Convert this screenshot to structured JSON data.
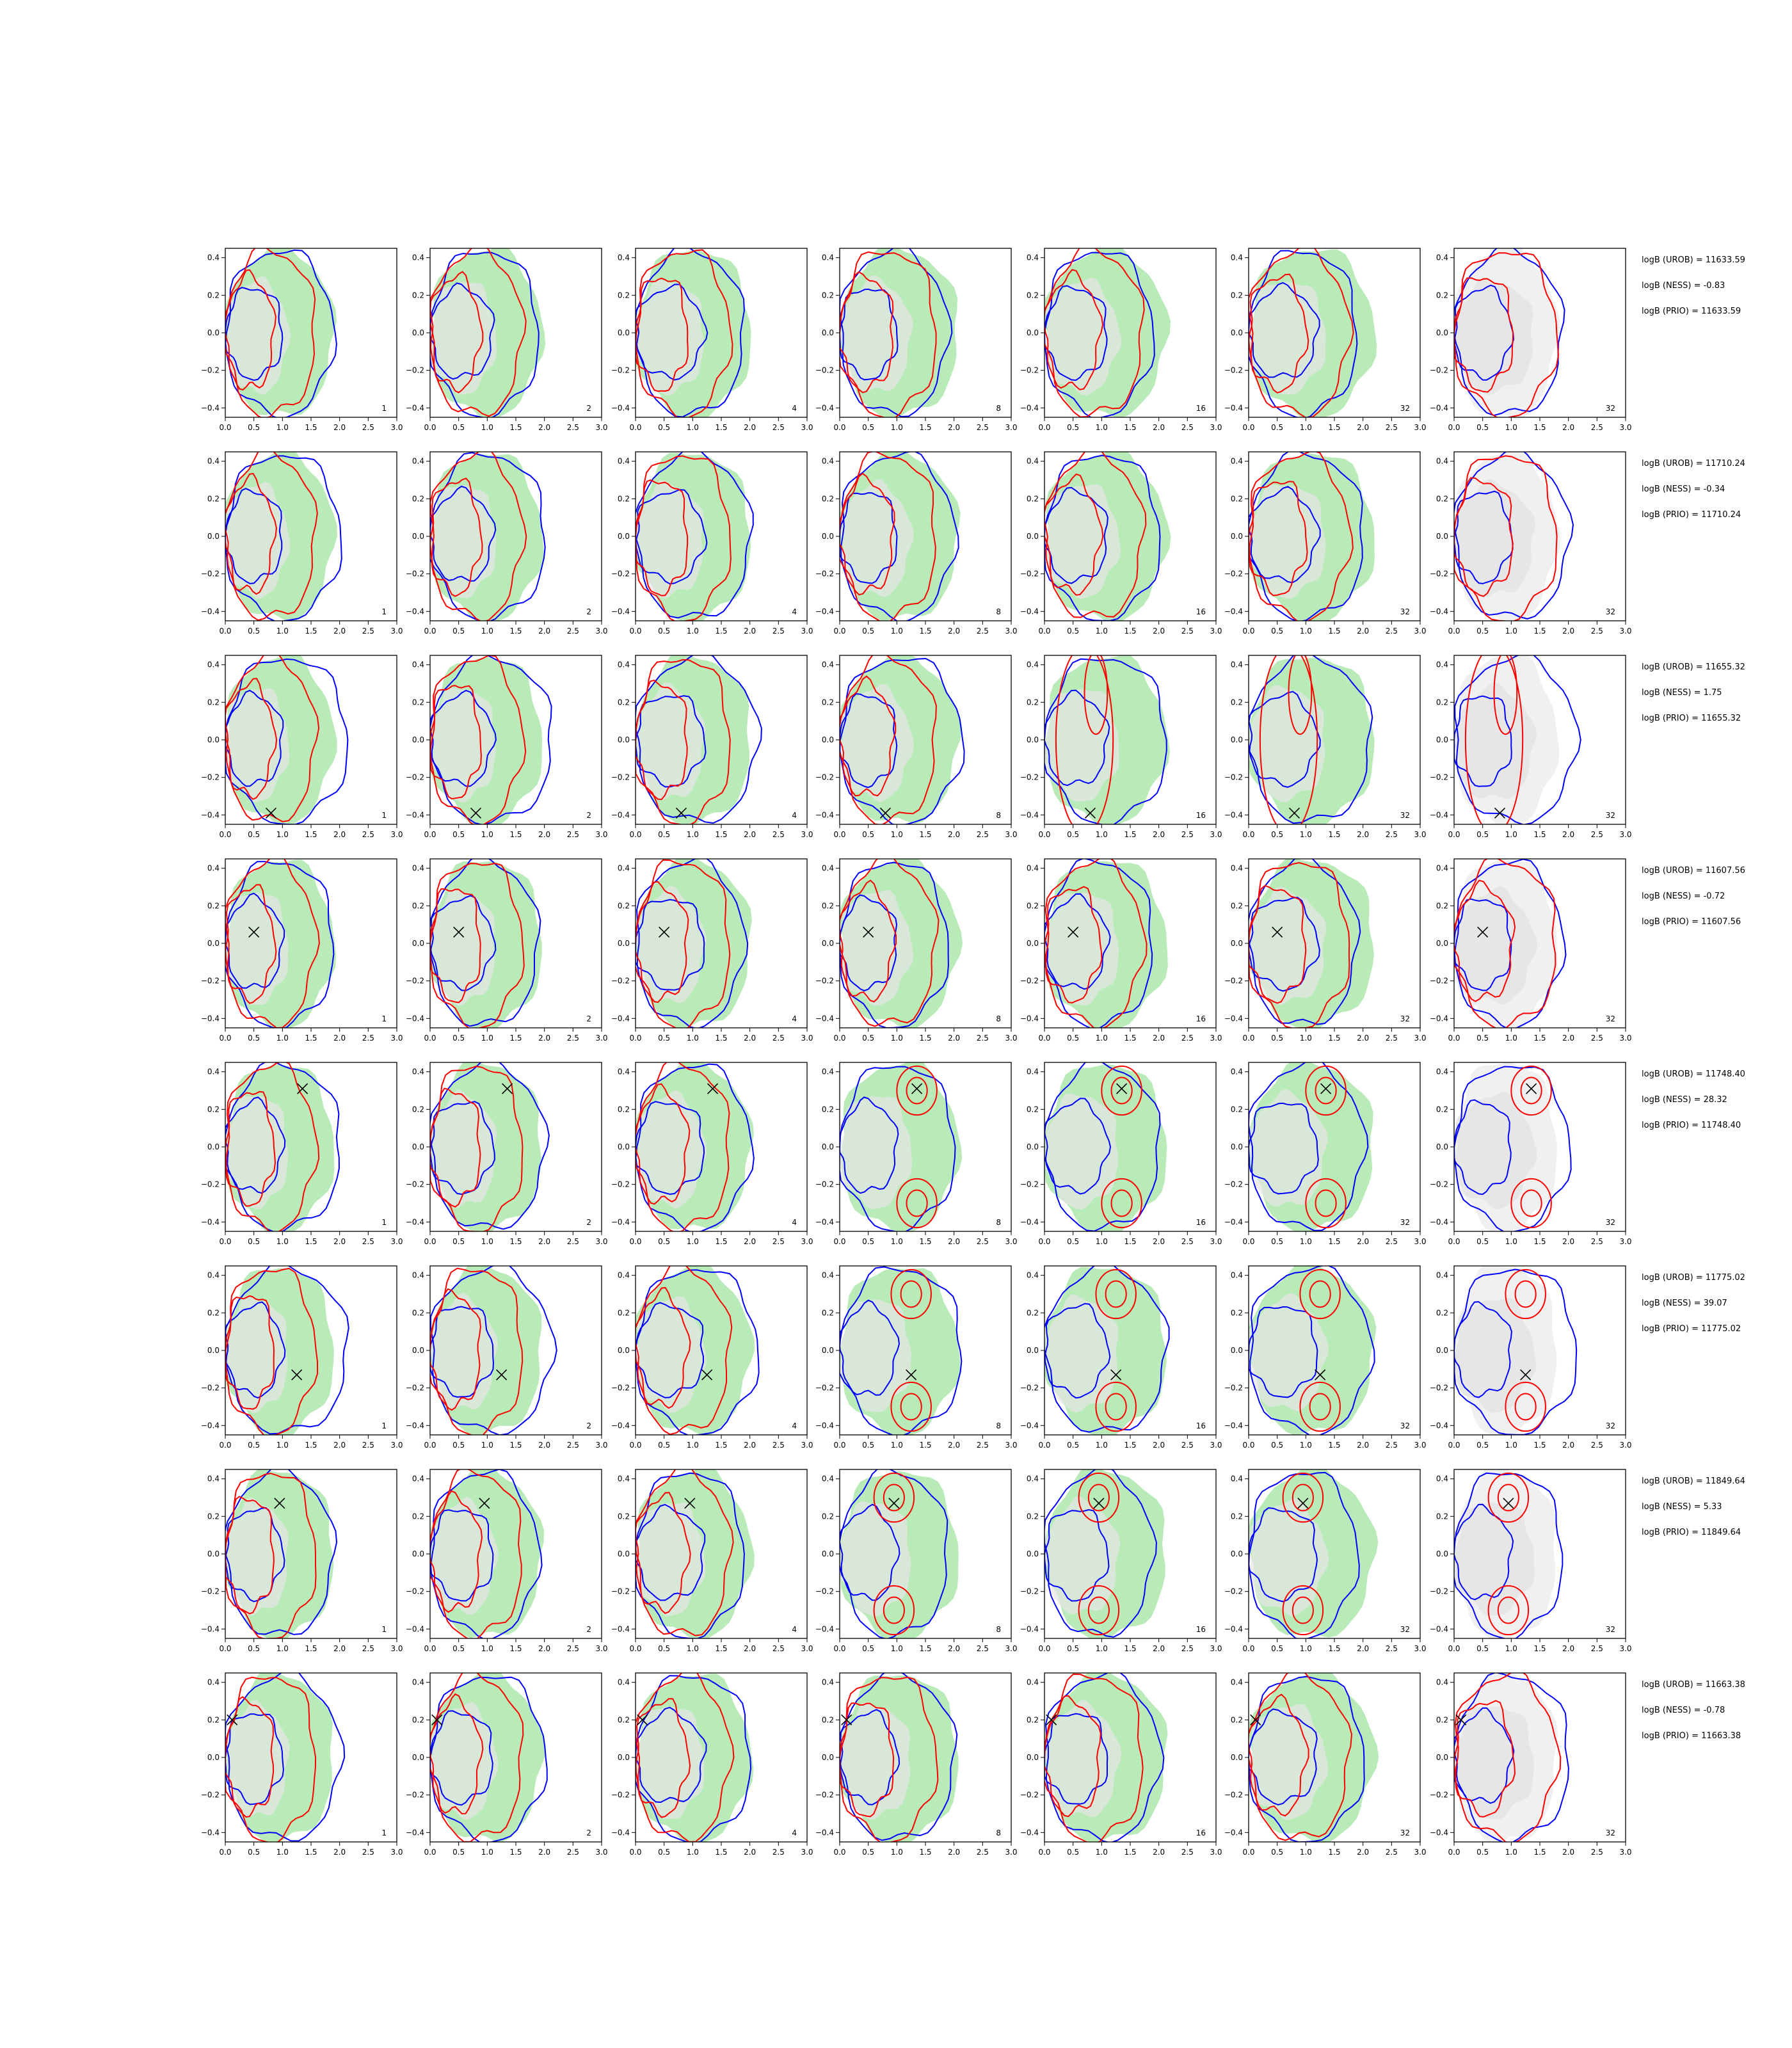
{
  "figure": {
    "colors": {
      "uniform_fill": "#b9ebb9",
      "prior_fill": "#e6e6e6",
      "blue_contour": "#0000ff",
      "red_contour": "#ff0000",
      "axes": "#000000",
      "background": "#ffffff"
    }
  },
  "chart_data": {
    "type": "contour",
    "grid": {
      "rows": 8,
      "cols": 7
    },
    "xlim": [
      0,
      3.0
    ],
    "ylim": [
      -0.45,
      0.45
    ],
    "xticks": [
      "0.0",
      "0.5",
      "1.0",
      "1.5",
      "2.0",
      "2.5",
      "3.0"
    ],
    "yticks": [
      "0.4",
      "0.2",
      "0.0",
      "−0.2",
      "−0.4"
    ],
    "ytick_values": [
      0.4,
      0.2,
      0.0,
      -0.2,
      -0.4
    ],
    "xtick_values": [
      0,
      0.5,
      1.0,
      1.5,
      2.0,
      2.5,
      3.0
    ],
    "col_labels": [
      "1",
      "2",
      "4",
      "8",
      "16",
      "32",
      "32"
    ],
    "rows": [
      {
        "marker": null,
        "mode": "wide",
        "annotations": [
          "logB (UROB) = 11633.59",
          "logB (NESS) = -0.83",
          "logB (PRIO) = 11633.59"
        ]
      },
      {
        "marker": null,
        "mode": "wide",
        "annotations": [
          "logB (UROB) = 11710.24",
          "logB (NESS) = -0.34",
          "logB (PRIO) = 11710.24"
        ]
      },
      {
        "marker": [
          0.8,
          -0.39
        ],
        "mode": "tall",
        "annotations": [
          "logB (UROB) = 11655.32",
          "logB (NESS) = 1.75",
          "logB (PRIO) = 11655.32"
        ]
      },
      {
        "marker": [
          0.5,
          0.06
        ],
        "mode": "wide",
        "annotations": [
          "logB (UROB) = 11607.56",
          "logB (NESS) = -0.72",
          "logB (PRIO) = 11607.56"
        ]
      },
      {
        "marker": [
          1.35,
          0.31
        ],
        "mode": "twin",
        "annotations": [
          "logB (UROB) = 11748.40",
          "logB (NESS) = 28.32",
          "logB (PRIO) = 11748.40"
        ]
      },
      {
        "marker": [
          1.25,
          -0.13
        ],
        "mode": "twin",
        "annotations": [
          "logB (UROB) = 11775.02",
          "logB (NESS) = 39.07",
          "logB (PRIO) = 11775.02"
        ]
      },
      {
        "marker": [
          0.95,
          0.27
        ],
        "mode": "twin",
        "annotations": [
          "logB (UROB) = 11849.64",
          "logB (NESS) = 5.33",
          "logB (PRIO) = 11849.64"
        ]
      },
      {
        "marker": [
          0.12,
          0.2
        ],
        "mode": "wide",
        "annotations": [
          "logB (UROB) = 11663.38",
          "logB (NESS) = -0.78",
          "logB (PRIO) = 11663.38"
        ]
      }
    ]
  }
}
